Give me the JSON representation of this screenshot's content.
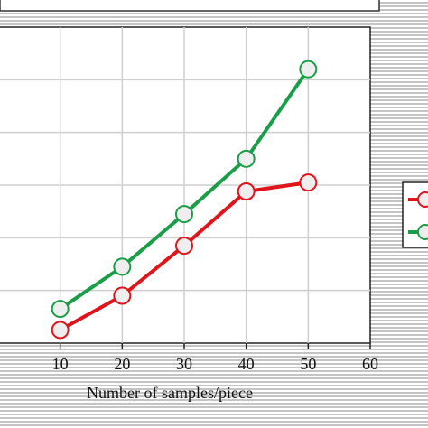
{
  "chart_data": {
    "type": "line",
    "xlabel": "Number of samples/piece",
    "ylabel": "",
    "x": [
      10,
      20,
      30,
      40,
      50
    ],
    "xlim": [
      0,
      60
    ],
    "ylim": [
      0,
      6
    ],
    "x_ticks": [
      "10",
      "20",
      "30",
      "40",
      "50",
      "60"
    ],
    "grid": true,
    "legend_placement": "right",
    "series": [
      {
        "color": "#e0151b",
        "values": [
          0.25,
          0.9,
          1.85,
          2.88,
          3.05
        ]
      },
      {
        "color": "#1a9e48",
        "values": [
          0.65,
          1.45,
          2.45,
          3.5,
          5.2
        ]
      }
    ]
  },
  "colors": {
    "background_stripes": "#d4d4d4",
    "plot_background": "#ffffff",
    "grid": "#cfcfcf",
    "marker_fill": "#eeeeee"
  }
}
